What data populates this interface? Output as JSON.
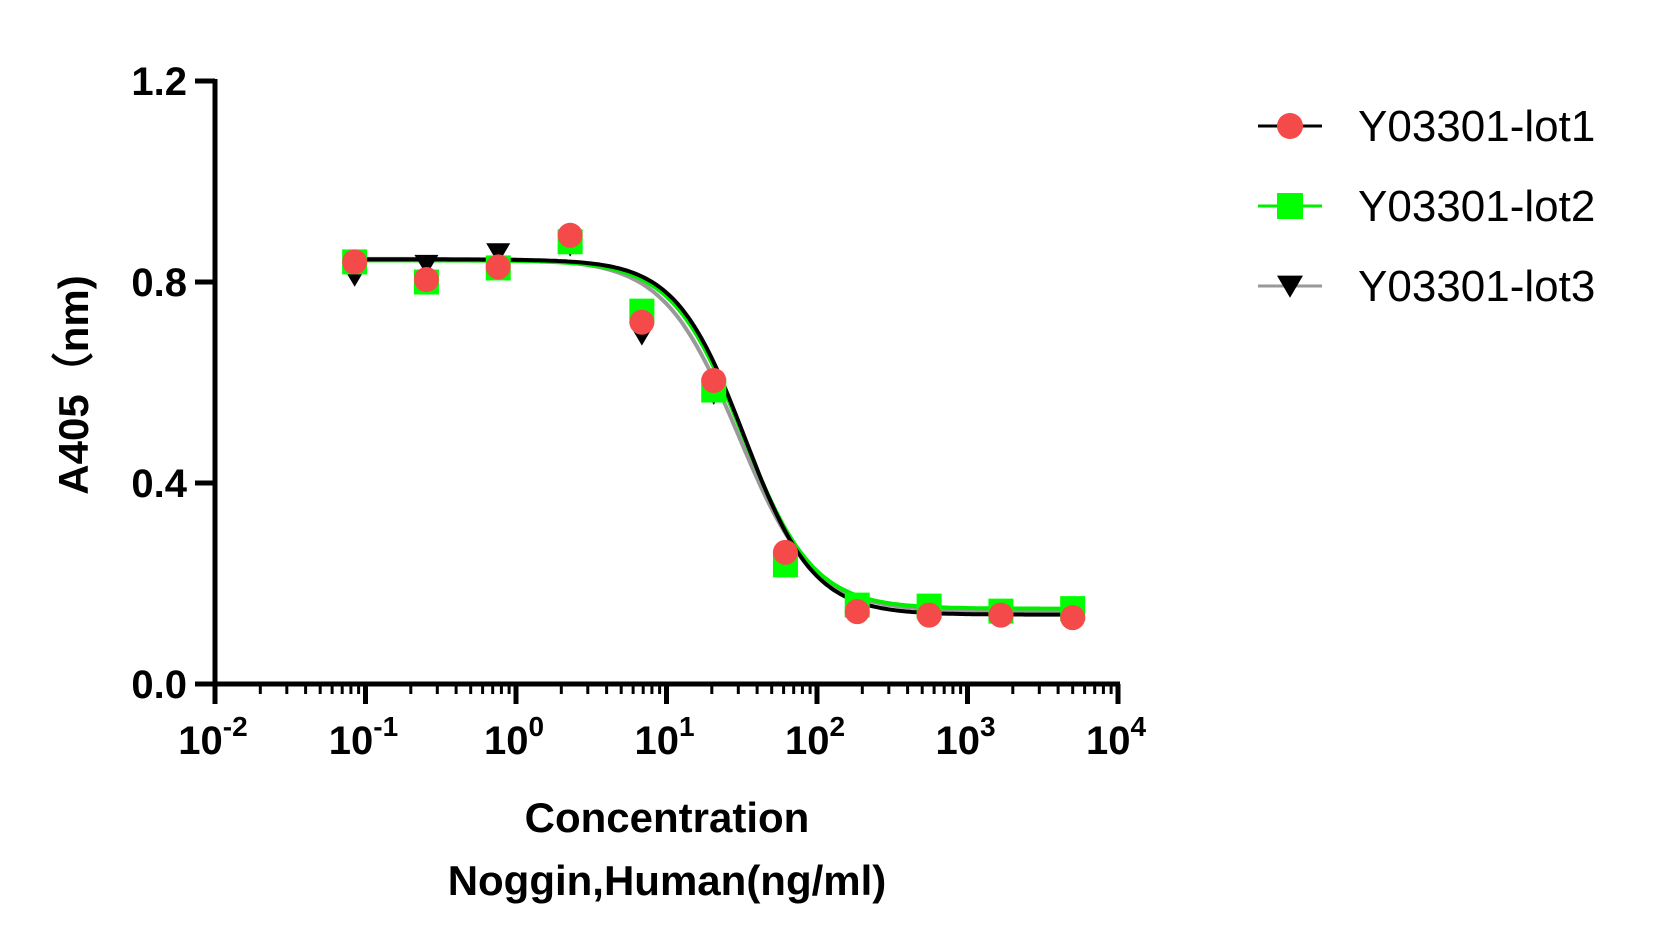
{
  "chart_data": {
    "type": "scatter",
    "title": "",
    "xlabel_line1": "Concentration",
    "xlabel_line2": "Noggin,Human(ng/ml)",
    "ylabel": "A405（nm)",
    "xscale": "log",
    "xlim": [
      0.01,
      10000
    ],
    "ylim": [
      0,
      1.2
    ],
    "x_ticks": [
      {
        "base": "10",
        "exp": "-2"
      },
      {
        "base": "10",
        "exp": "-1"
      },
      {
        "base": "10",
        "exp": "0"
      },
      {
        "base": "10",
        "exp": "1"
      },
      {
        "base": "10",
        "exp": "2"
      },
      {
        "base": "10",
        "exp": "3"
      },
      {
        "base": "10",
        "exp": "4"
      }
    ],
    "y_ticks": [
      "0.0",
      "0.4",
      "0.8",
      "1.2"
    ],
    "grid": false,
    "legend_position": "top-right",
    "x": [
      0.0847,
      0.254,
      0.762,
      2.29,
      6.86,
      20.6,
      61.7,
      185,
      556,
      1667,
      5000
    ],
    "series": [
      {
        "name": "Y03301-lot1",
        "marker": "circle",
        "marker_color": "#f44a4a",
        "line_color": "#000000",
        "values": [
          0.84,
          0.805,
          0.83,
          0.893,
          0.72,
          0.604,
          0.262,
          0.144,
          0.137,
          0.137,
          0.132
        ]
      },
      {
        "name": "Y03301-lot2",
        "marker": "square",
        "marker_color": "#00ff00",
        "line_color": "#00ee00",
        "values": [
          0.84,
          0.8,
          0.828,
          0.88,
          0.742,
          0.585,
          0.237,
          0.157,
          0.155,
          0.145,
          0.15
        ]
      },
      {
        "name": "Y03301-lot3",
        "marker": "triangle-down",
        "marker_color": "#000000",
        "line_color": "#999999",
        "values": [
          0.812,
          0.835,
          0.858,
          0.872,
          0.695,
          0.577,
          0.242,
          0.148,
          0.146,
          0.14,
          0.145
        ]
      }
    ]
  }
}
